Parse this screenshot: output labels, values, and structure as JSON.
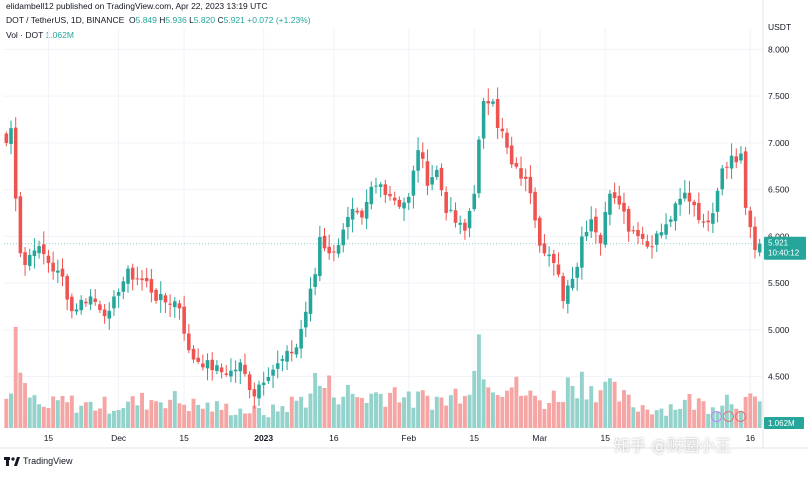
{
  "header": {
    "publisher": "elidambell12 published on TradingView.com, Apr 22, 2023 13:19 UTC",
    "symbol": "DOT / TetherUS, 1D, BINANCE",
    "o_label": "O",
    "o_value": "5.849",
    "h_label": "H",
    "h_value": "5.936",
    "l_label": "L",
    "l_value": "5.820",
    "c_label": "C",
    "c_value": "5.921",
    "change": "+0.072 (+1.23%)",
    "vol_label": "Vol · DOT",
    "vol_value": "1.062M"
  },
  "footer": {
    "logo_text": "TradingView"
  },
  "watermark": "知乎 @财圈小王",
  "colors": {
    "up": "#26a69a",
    "down": "#ef5350",
    "vol_up": "#94d3cc",
    "vol_down": "#f5a5a3",
    "grid": "#f0f3fa",
    "price_tag": "#26a69a",
    "price_line": "#26a69a"
  },
  "chart_data": {
    "type": "candlestick",
    "title": "DOT / TetherUS, 1D, BINANCE",
    "currency": "USDT",
    "ylim": [
      3.95,
      8.1
    ],
    "y_ticks": [
      "8.000",
      "7.500",
      "7.000",
      "6.500",
      "6.000",
      "5.500",
      "5.000",
      "4.500",
      "4.000"
    ],
    "x_ticks": [
      {
        "label": "15",
        "index": 9
      },
      {
        "label": "Dec",
        "index": 24
      },
      {
        "label": "15",
        "index": 38
      },
      {
        "label": "2023",
        "index": 55
      },
      {
        "label": "16",
        "index": 70
      },
      {
        "label": "Feb",
        "index": 86
      },
      {
        "label": "15",
        "index": 100
      },
      {
        "label": "Mar",
        "index": 114
      },
      {
        "label": "15",
        "index": 128
      },
      {
        "label": "16",
        "index": 159
      }
    ],
    "last_price": "5.921",
    "countdown": "10:40:12",
    "last_volume": "1.062M",
    "volume_max": 2.7,
    "anchors": [
      [
        0,
        7.0
      ],
      [
        1,
        7.15
      ],
      [
        2,
        6.45
      ],
      [
        3,
        5.85
      ],
      [
        4,
        5.7
      ],
      [
        6,
        5.9
      ],
      [
        8,
        5.8
      ],
      [
        10,
        5.65
      ],
      [
        12,
        5.55
      ],
      [
        14,
        5.2
      ],
      [
        16,
        5.3
      ],
      [
        18,
        5.35
      ],
      [
        20,
        5.25
      ],
      [
        22,
        5.15
      ],
      [
        24,
        5.45
      ],
      [
        26,
        5.6
      ],
      [
        28,
        5.55
      ],
      [
        30,
        5.5
      ],
      [
        32,
        5.35
      ],
      [
        34,
        5.3
      ],
      [
        36,
        5.3
      ],
      [
        37,
        5.25
      ],
      [
        38,
        5.0
      ],
      [
        39,
        4.75
      ],
      [
        40,
        4.7
      ],
      [
        42,
        4.65
      ],
      [
        44,
        4.6
      ],
      [
        46,
        4.55
      ],
      [
        48,
        4.55
      ],
      [
        50,
        4.62
      ],
      [
        52,
        4.4
      ],
      [
        53,
        4.32
      ],
      [
        54,
        4.42
      ],
      [
        56,
        4.55
      ],
      [
        58,
        4.62
      ],
      [
        60,
        4.72
      ],
      [
        62,
        4.82
      ],
      [
        64,
        5.2
      ],
      [
        66,
        5.6
      ],
      [
        67,
        6.0
      ],
      [
        68,
        5.9
      ],
      [
        70,
        5.8
      ],
      [
        72,
        6.1
      ],
      [
        74,
        6.25
      ],
      [
        76,
        6.15
      ],
      [
        78,
        6.5
      ],
      [
        80,
        6.55
      ],
      [
        82,
        6.45
      ],
      [
        84,
        6.35
      ],
      [
        86,
        6.4
      ],
      [
        88,
        6.95
      ],
      [
        90,
        6.6
      ],
      [
        92,
        6.7
      ],
      [
        94,
        6.3
      ],
      [
        96,
        6.15
      ],
      [
        98,
        6.05
      ],
      [
        100,
        6.5
      ],
      [
        101,
        7.0
      ],
      [
        102,
        7.4
      ],
      [
        104,
        7.5
      ],
      [
        105,
        7.2
      ],
      [
        106,
        7.1
      ],
      [
        108,
        6.75
      ],
      [
        110,
        6.65
      ],
      [
        112,
        6.5
      ],
      [
        114,
        5.95
      ],
      [
        116,
        5.8
      ],
      [
        118,
        5.55
      ],
      [
        119,
        5.35
      ],
      [
        121,
        5.6
      ],
      [
        122,
        5.7
      ],
      [
        123,
        6.0
      ],
      [
        125,
        6.2
      ],
      [
        127,
        5.95
      ],
      [
        129,
        6.5
      ],
      [
        131,
        6.4
      ],
      [
        133,
        6.1
      ],
      [
        135,
        6.05
      ],
      [
        137,
        5.9
      ],
      [
        139,
        6.0
      ],
      [
        141,
        6.1
      ],
      [
        143,
        6.3
      ],
      [
        145,
        6.45
      ],
      [
        147,
        6.35
      ],
      [
        149,
        6.1
      ],
      [
        151,
        6.3
      ],
      [
        153,
        6.75
      ],
      [
        155,
        6.85
      ],
      [
        156,
        6.8
      ],
      [
        157,
        6.9
      ],
      [
        158,
        6.3
      ],
      [
        159,
        6.05
      ],
      [
        160,
        5.85
      ],
      [
        161,
        5.92
      ]
    ],
    "volume_anchors": [
      [
        0,
        1.1
      ],
      [
        1,
        0.8
      ],
      [
        2,
        2.0
      ],
      [
        3,
        1.5
      ],
      [
        4,
        0.9
      ],
      [
        8,
        0.5
      ],
      [
        12,
        0.7
      ],
      [
        16,
        0.6
      ],
      [
        24,
        0.6
      ],
      [
        34,
        0.8
      ],
      [
        40,
        0.6
      ],
      [
        48,
        0.5
      ],
      [
        56,
        0.4
      ],
      [
        60,
        0.6
      ],
      [
        64,
        0.8
      ],
      [
        66,
        1.2
      ],
      [
        70,
        1.0
      ],
      [
        76,
        0.8
      ],
      [
        80,
        0.9
      ],
      [
        84,
        1.0
      ],
      [
        86,
        0.7
      ],
      [
        90,
        0.8
      ],
      [
        94,
        0.7
      ],
      [
        96,
        0.9
      ],
      [
        100,
        1.5
      ],
      [
        101,
        2.4
      ],
      [
        102,
        1.9
      ],
      [
        104,
        1.3
      ],
      [
        108,
        1.1
      ],
      [
        112,
        0.8
      ],
      [
        116,
        0.7
      ],
      [
        119,
        1.0
      ],
      [
        122,
        1.3
      ],
      [
        126,
        1.1
      ],
      [
        130,
        0.9
      ],
      [
        134,
        0.6
      ],
      [
        140,
        0.5
      ],
      [
        146,
        0.7
      ],
      [
        150,
        0.6
      ],
      [
        154,
        0.8
      ],
      [
        158,
        0.7
      ],
      [
        161,
        0.6
      ]
    ]
  }
}
